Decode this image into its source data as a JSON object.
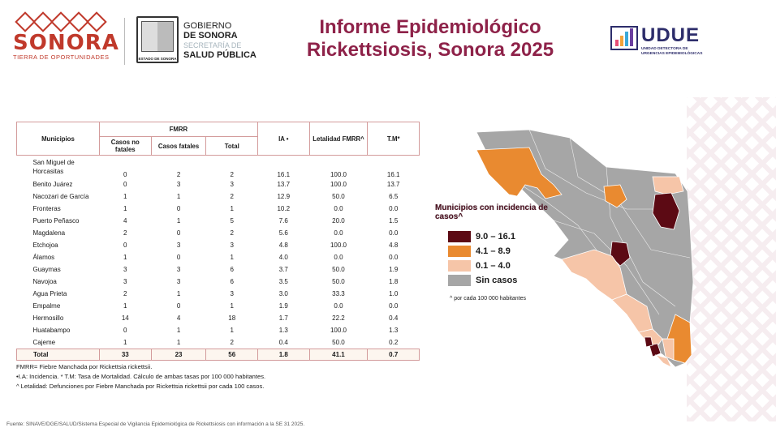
{
  "header": {
    "sonora_word": "SONORA",
    "sonora_tagline": "TIERRA DE OPORTUNIDADES",
    "gob_line1": "GOBIERNO",
    "gob_line2": "DE SONORA",
    "gob_line3": "SECRETARÍA DE",
    "gob_line4": "SALUD PÚBLICA",
    "escudo_label": "ESTADO DE SONORA",
    "title_line1": "Informe Epidemiológico",
    "title_line2": "Rickettsiosis, Sonora 2025",
    "udue_word": "UDUE",
    "udue_sub1": "UNIDAD DETECTORA DE",
    "udue_sub2": "URGENCIAS EPIDEMIOLÓGICAS"
  },
  "table": {
    "h_municipios": "Municipios",
    "h_fmrr": "FMRR",
    "h_casos_no_fatales": "Casos no fatales",
    "h_casos_fatales": "Casos fatales",
    "h_total": "Total",
    "h_ia": "IA •",
    "h_letalidad": "Letalidad FMRR^",
    "h_tm": "T.M*",
    "rows": [
      {
        "m": "San Miguel de Horcasitas",
        "nf": "0",
        "f": "2",
        "t": "2",
        "ia": "16.1",
        "let": "100.0",
        "tm": "16.1"
      },
      {
        "m": "Benito Juárez",
        "nf": "0",
        "f": "3",
        "t": "3",
        "ia": "13.7",
        "let": "100.0",
        "tm": "13.7"
      },
      {
        "m": "Nacozari de García",
        "nf": "1",
        "f": "1",
        "t": "2",
        "ia": "12.9",
        "let": "50.0",
        "tm": "6.5"
      },
      {
        "m": "Fronteras",
        "nf": "1",
        "f": "0",
        "t": "1",
        "ia": "10.2",
        "let": "0.0",
        "tm": "0.0"
      },
      {
        "m": "Puerto Peñasco",
        "nf": "4",
        "f": "1",
        "t": "5",
        "ia": "7.6",
        "let": "20.0",
        "tm": "1.5"
      },
      {
        "m": "Magdalena",
        "nf": "2",
        "f": "0",
        "t": "2",
        "ia": "5.6",
        "let": "0.0",
        "tm": "0.0"
      },
      {
        "m": "Etchojoa",
        "nf": "0",
        "f": "3",
        "t": "3",
        "ia": "4.8",
        "let": "100.0",
        "tm": "4.8"
      },
      {
        "m": "Álamos",
        "nf": "1",
        "f": "0",
        "t": "1",
        "ia": "4.0",
        "let": "0.0",
        "tm": "0.0"
      },
      {
        "m": "Guaymas",
        "nf": "3",
        "f": "3",
        "t": "6",
        "ia": "3.7",
        "let": "50.0",
        "tm": "1.9"
      },
      {
        "m": "Navojoa",
        "nf": "3",
        "f": "3",
        "t": "6",
        "ia": "3.5",
        "let": "50.0",
        "tm": "1.8"
      },
      {
        "m": "Agua Prieta",
        "nf": "2",
        "f": "1",
        "t": "3",
        "ia": "3.0",
        "let": "33.3",
        "tm": "1.0"
      },
      {
        "m": "Empalme",
        "nf": "1",
        "f": "0",
        "t": "1",
        "ia": "1.9",
        "let": "0.0",
        "tm": "0.0"
      },
      {
        "m": "Hermosillo",
        "nf": "14",
        "f": "4",
        "t": "18",
        "ia": "1.7",
        "let": "22.2",
        "tm": "0.4"
      },
      {
        "m": "Huatabampo",
        "nf": "0",
        "f": "1",
        "t": "1",
        "ia": "1.3",
        "let": "100.0",
        "tm": "1.3"
      },
      {
        "m": "Cajeme",
        "nf": "1",
        "f": "1",
        "t": "2",
        "ia": "0.4",
        "let": "50.0",
        "tm": "0.2"
      }
    ],
    "total": {
      "m": "Total",
      "nf": "33",
      "f": "23",
      "t": "56",
      "ia": "1.8",
      "let": "41.1",
      "tm": "0.7"
    }
  },
  "notes": {
    "n1": "FMRR= Fiebre Manchada por Rickettsia rickettsii.",
    "n2": "•I.A: Incidencia. * T.M: Tasa de Mortalidad. Cálculo de ambas tasas por 100 000 habitantes.",
    "n3": "^ Letalidad: Defunciones por Fiebre Manchada por Rickettsia rickettsii por cada 100 casos."
  },
  "fuente": "Fuente: SINAVE/DGE/SALUD/Sistema Especial de Vigilancia Epidemiológica de Rickettsiosis con información a la SE 31 2025.",
  "legend": {
    "title": "Municipios con incidencia de casos^",
    "items": [
      {
        "label": "9.0 – 16.1",
        "color": "#5c0a14"
      },
      {
        "label": "4.1 – 8.9",
        "color": "#e98a30"
      },
      {
        "label": "0.1 – 4.0",
        "color": "#f6c5a8"
      },
      {
        "label": "Sin casos",
        "color": "#a6a6a6"
      }
    ],
    "note": "^ por cada 100 000 habitantes"
  },
  "colors": {
    "title": "#8e2249",
    "border": "#d39b9b",
    "dark": "#5c0a14",
    "orange": "#e98a30",
    "light": "#f6c5a8",
    "gray": "#a6a6a6"
  }
}
